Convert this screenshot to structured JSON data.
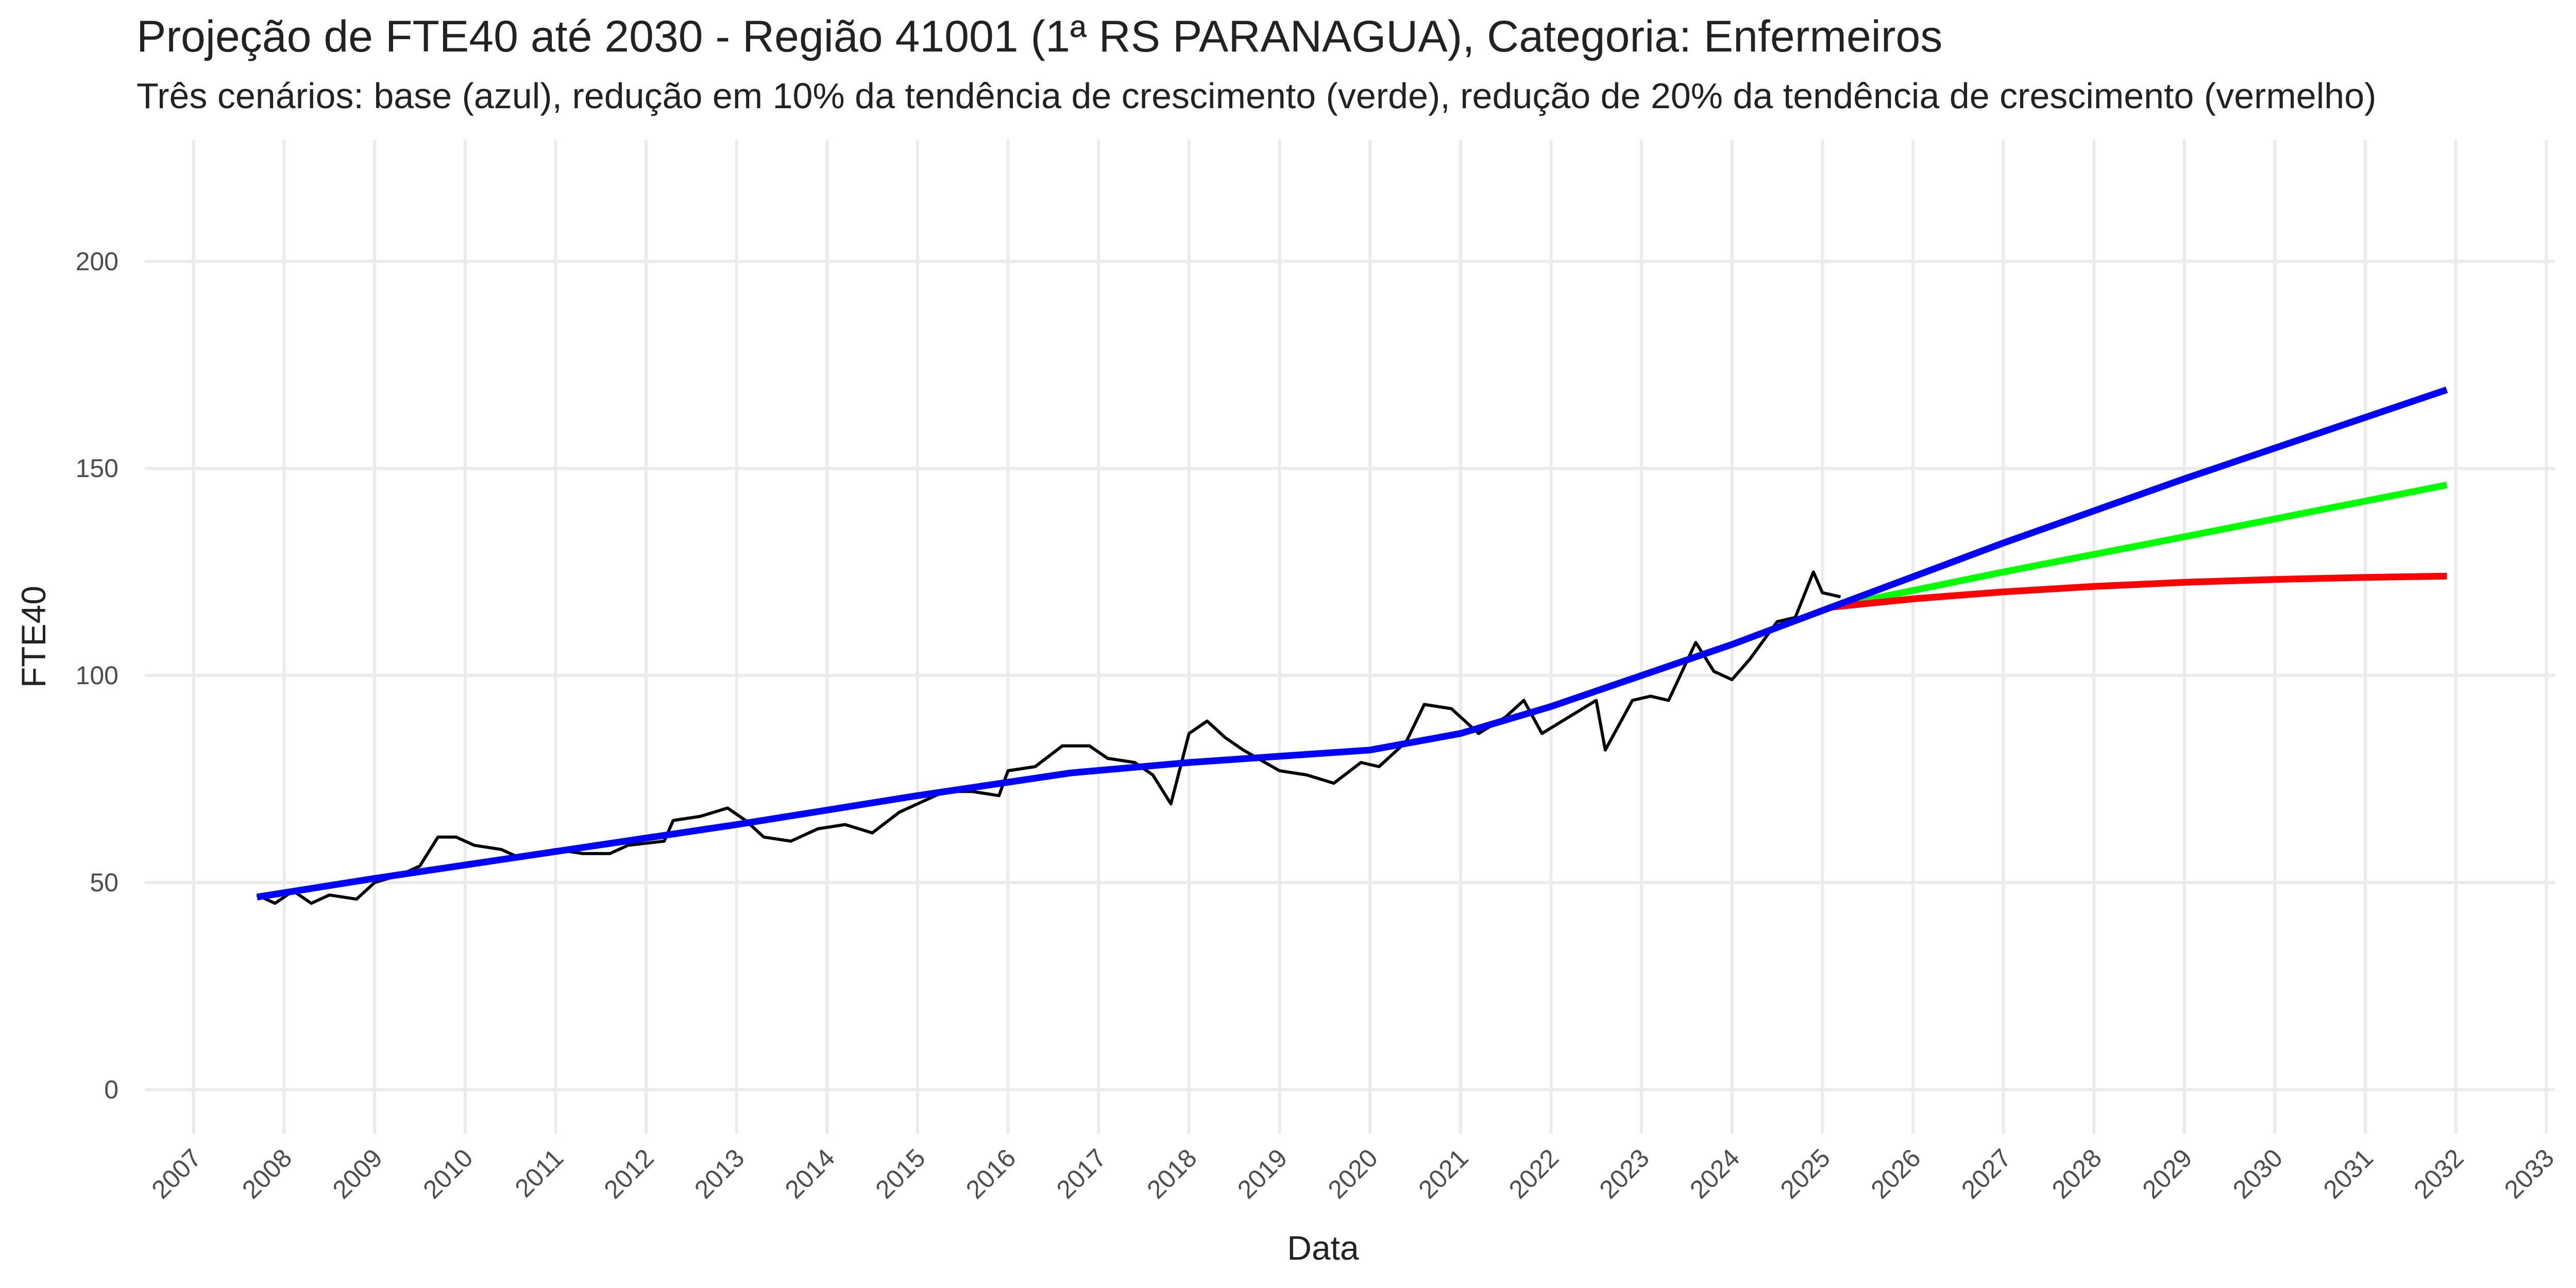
{
  "chart_data": {
    "type": "line",
    "title": "Projeção de FTE40 até 2030 - Região 41001 (1ª RS PARANAGUA), Categoria: Enfermeiros",
    "subtitle": "Três cenários: base (azul), redução em 10% da tendência de crescimento (verde), redução de 20% da tendência de crescimento (vermelho)",
    "x_label": "Data",
    "y_label": "FTE40",
    "xlim": [
      2006.46,
      2033.1
    ],
    "ylim": [
      -10.7,
      229.4
    ],
    "xticks": [
      2007,
      2008,
      2009,
      2010,
      2011,
      2012,
      2013,
      2014,
      2015,
      2016,
      2017,
      2018,
      2019,
      2020,
      2021,
      2022,
      2023,
      2024,
      2025,
      2026,
      2027,
      2028,
      2029,
      2030,
      2031,
      2032,
      2033
    ],
    "yticks": [
      0,
      50,
      100,
      150,
      200
    ],
    "grid": true,
    "series": [
      {
        "color": "#000000",
        "width": 6,
        "x": [
          2007.7,
          2007.9,
          2008.1,
          2008.3,
          2008.5,
          2008.8,
          2009.0,
          2009.3,
          2009.5,
          2009.7,
          2009.9,
          2010.1,
          2010.4,
          2010.6,
          2011.0,
          2011.3,
          2011.6,
          2011.8,
          2012.2,
          2012.3,
          2012.6,
          2012.9,
          2013.1,
          2013.3,
          2013.6,
          2013.9,
          2014.2,
          2014.5,
          2014.8,
          2015.0,
          2015.3,
          2015.6,
          2015.9,
          2016.0,
          2016.3,
          2016.6,
          2016.9,
          2017.1,
          2017.4,
          2017.6,
          2017.8,
          2018.0,
          2018.2,
          2018.4,
          2018.6,
          2019.0,
          2019.3,
          2019.6,
          2019.9,
          2020.1,
          2020.4,
          2020.6,
          2020.9,
          2021.2,
          2021.5,
          2021.7,
          2021.9,
          2022.2,
          2022.5,
          2022.6,
          2022.9,
          2023.1,
          2023.3,
          2023.6,
          2023.8,
          2024.0,
          2024.2,
          2024.5,
          2024.7,
          2024.9,
          2025.0,
          2025.2
        ],
        "values": [
          47,
          45,
          48,
          45,
          47,
          46,
          50,
          52,
          54,
          61,
          61,
          59,
          58,
          56,
          58,
          57,
          57,
          59,
          60,
          65,
          66,
          68,
          65,
          61,
          60,
          63,
          64,
          62,
          67,
          69,
          72,
          72,
          71,
          77,
          78,
          83,
          83,
          80,
          79,
          76,
          69,
          86,
          89,
          85,
          82,
          77,
          76,
          74,
          79,
          78,
          84,
          93,
          92,
          86,
          90,
          94,
          86,
          90,
          94,
          82,
          94,
          95,
          94,
          108,
          101,
          99,
          104,
          113,
          114,
          125,
          120,
          119
        ]
      },
      {
        "color": "#00ff00",
        "width": 13,
        "x": [
          2025.1,
          2027,
          2029,
          2031.9
        ],
        "values": [
          116.5,
          125,
          133.5,
          146
        ]
      },
      {
        "color": "#ff0000",
        "width": 13,
        "x": [
          2025.1,
          2026,
          2027,
          2028,
          2029,
          2030,
          2031,
          2031.9
        ],
        "values": [
          116.5,
          118.5,
          120.2,
          121.5,
          122.5,
          123.2,
          123.7,
          124
        ]
      },
      {
        "color": "#0000ff",
        "width": 13,
        "x": [
          2007.7,
          2009,
          2011,
          2013,
          2015,
          2016.7,
          2018,
          2020,
          2021,
          2022,
          2023,
          2024,
          2025.1,
          2027,
          2029,
          2031.9
        ],
        "values": [
          46.5,
          51,
          57.5,
          64,
          71,
          76.5,
          79,
          82,
          86,
          92.5,
          100,
          107.5,
          116.5,
          132,
          147.5,
          169
        ]
      }
    ]
  }
}
